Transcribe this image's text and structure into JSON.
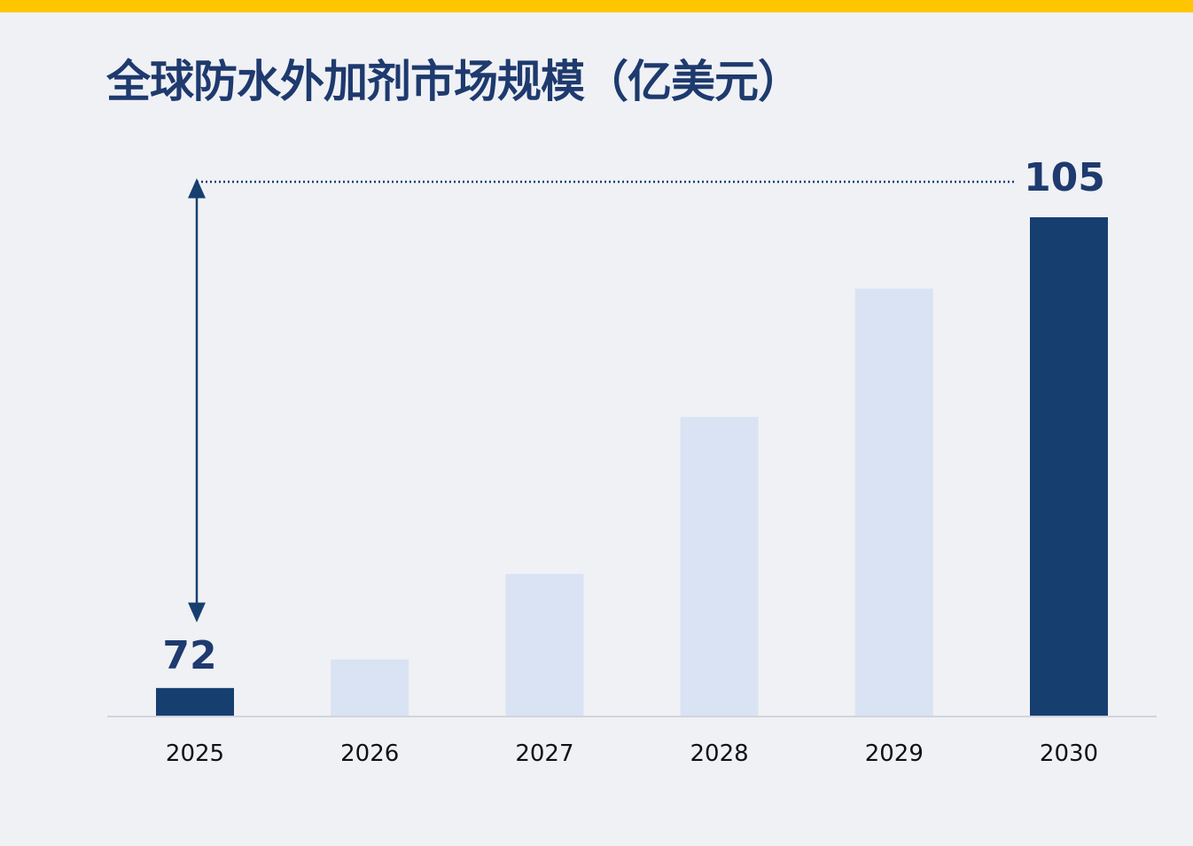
{
  "chart_data": {
    "type": "bar",
    "title": "全球防水外加剂市场规模（亿美元）",
    "categories": [
      "2025",
      "2026",
      "2027",
      "2028",
      "2029",
      "2030"
    ],
    "values": [
      72,
      74,
      80,
      91,
      100,
      105
    ],
    "data_labels": [
      "72",
      "",
      "",
      "",
      "",
      "105"
    ],
    "highlighted": [
      true,
      false,
      false,
      false,
      false,
      true
    ],
    "ylim": [
      70,
      108
    ],
    "xlabel": "",
    "ylabel": "",
    "grid": false,
    "legend": "none",
    "colors": {
      "highlight": "#163f70",
      "muted": "#dae3f3",
      "accent_bar": "#ffc600",
      "title": "#1e3a6e",
      "baseline": "#d0d4dc"
    }
  }
}
